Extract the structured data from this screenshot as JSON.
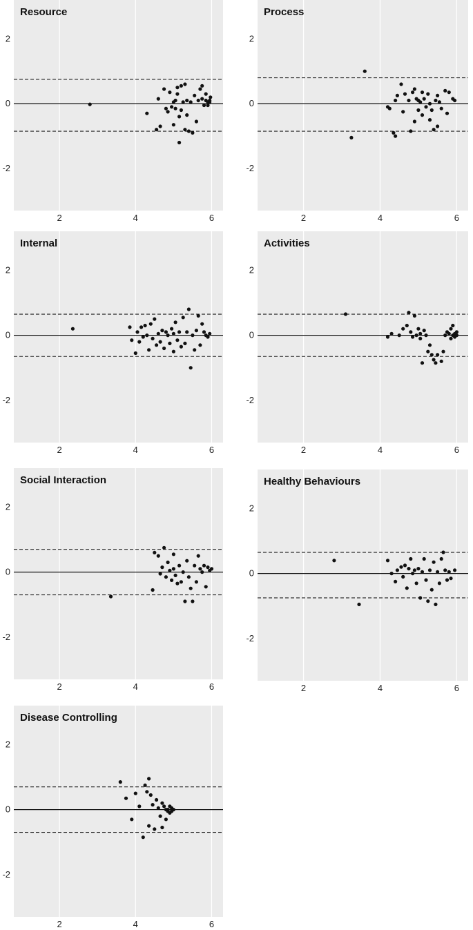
{
  "chart_data": [
    {
      "type": "scatter",
      "title": "Resource",
      "xlim": [
        0.8,
        6.3
      ],
      "ylim": [
        -3.3,
        3.2
      ],
      "xticks": [
        2,
        4,
        6
      ],
      "yticks": [
        2,
        0,
        -2
      ],
      "mean_line": 0,
      "loa_upper": 0.75,
      "loa_lower": -0.85,
      "points": [
        [
          2.8,
          -0.02
        ],
        [
          4.3,
          -0.3
        ],
        [
          4.55,
          -0.8
        ],
        [
          4.6,
          0.15
        ],
        [
          4.65,
          -0.7
        ],
        [
          4.75,
          0.45
        ],
        [
          4.8,
          -0.15
        ],
        [
          4.85,
          -0.25
        ],
        [
          4.9,
          0.35
        ],
        [
          4.95,
          -0.1
        ],
        [
          5.0,
          0.05
        ],
        [
          5.0,
          -0.65
        ],
        [
          5.05,
          0.1
        ],
        [
          5.05,
          -0.15
        ],
        [
          5.1,
          0.3
        ],
        [
          5.1,
          0.5
        ],
        [
          5.15,
          -0.4
        ],
        [
          5.15,
          -1.2
        ],
        [
          5.2,
          0.55
        ],
        [
          5.2,
          -0.2
        ],
        [
          5.25,
          0.05
        ],
        [
          5.3,
          0.6
        ],
        [
          5.3,
          -0.8
        ],
        [
          5.35,
          0.1
        ],
        [
          5.35,
          -0.35
        ],
        [
          5.4,
          -0.85
        ],
        [
          5.45,
          0.05
        ],
        [
          5.5,
          -0.9
        ],
        [
          5.55,
          0.25
        ],
        [
          5.6,
          -0.55
        ],
        [
          5.65,
          0.1
        ],
        [
          5.7,
          0.45
        ],
        [
          5.75,
          0.55
        ],
        [
          5.75,
          0.15
        ],
        [
          5.8,
          -0.05
        ],
        [
          5.85,
          0.1
        ],
        [
          5.85,
          0.3
        ],
        [
          5.9,
          0.05
        ],
        [
          5.9,
          -0.05
        ],
        [
          5.95,
          0.1
        ],
        [
          5.95,
          0.05
        ],
        [
          5.97,
          0.2
        ]
      ]
    },
    {
      "type": "scatter",
      "title": "Process",
      "xlim": [
        0.8,
        6.3
      ],
      "ylim": [
        -3.3,
        3.2
      ],
      "xticks": [
        2,
        4,
        6
      ],
      "yticks": [
        2,
        0,
        -2
      ],
      "mean_line": 0,
      "loa_upper": 0.8,
      "loa_lower": -0.85,
      "points": [
        [
          3.25,
          -1.05
        ],
        [
          3.6,
          1.0
        ],
        [
          4.2,
          -0.1
        ],
        [
          4.25,
          -0.15
        ],
        [
          4.35,
          -0.9
        ],
        [
          4.4,
          -1.0
        ],
        [
          4.4,
          0.1
        ],
        [
          4.45,
          0.25
        ],
        [
          4.55,
          0.6
        ],
        [
          4.6,
          -0.25
        ],
        [
          4.65,
          0.3
        ],
        [
          4.75,
          0.1
        ],
        [
          4.8,
          -0.85
        ],
        [
          4.85,
          0.35
        ],
        [
          4.9,
          -0.55
        ],
        [
          4.9,
          0.45
        ],
        [
          4.95,
          0.15
        ],
        [
          5.0,
          0.1
        ],
        [
          5.0,
          -0.2
        ],
        [
          5.05,
          0.05
        ],
        [
          5.1,
          0.35
        ],
        [
          5.1,
          -0.35
        ],
        [
          5.15,
          0.15
        ],
        [
          5.2,
          -0.1
        ],
        [
          5.25,
          0.3
        ],
        [
          5.3,
          -0.5
        ],
        [
          5.3,
          0.0
        ],
        [
          5.35,
          -0.2
        ],
        [
          5.4,
          -0.8
        ],
        [
          5.45,
          0.1
        ],
        [
          5.5,
          -0.7
        ],
        [
          5.5,
          0.25
        ],
        [
          5.55,
          0.05
        ],
        [
          5.6,
          -0.15
        ],
        [
          5.7,
          0.4
        ],
        [
          5.75,
          -0.3
        ],
        [
          5.8,
          0.35
        ],
        [
          5.9,
          0.15
        ],
        [
          5.95,
          0.1
        ]
      ]
    },
    {
      "type": "scatter",
      "title": "Internal",
      "xlim": [
        0.8,
        6.3
      ],
      "ylim": [
        -3.3,
        3.2
      ],
      "xticks": [
        2,
        4,
        6
      ],
      "yticks": [
        2,
        0,
        -2
      ],
      "mean_line": 0,
      "loa_upper": 0.65,
      "loa_lower": -0.65,
      "points": [
        [
          2.35,
          0.2
        ],
        [
          3.85,
          0.25
        ],
        [
          3.9,
          -0.15
        ],
        [
          4.0,
          -0.55
        ],
        [
          4.05,
          0.1
        ],
        [
          4.1,
          -0.2
        ],
        [
          4.15,
          0.25
        ],
        [
          4.2,
          -0.05
        ],
        [
          4.25,
          0.3
        ],
        [
          4.3,
          0.0
        ],
        [
          4.35,
          -0.45
        ],
        [
          4.4,
          0.35
        ],
        [
          4.45,
          -0.1
        ],
        [
          4.5,
          0.5
        ],
        [
          4.55,
          -0.3
        ],
        [
          4.6,
          0.05
        ],
        [
          4.65,
          -0.2
        ],
        [
          4.7,
          0.15
        ],
        [
          4.75,
          -0.4
        ],
        [
          4.8,
          0.1
        ],
        [
          4.85,
          0.0
        ],
        [
          4.9,
          -0.25
        ],
        [
          4.95,
          0.2
        ],
        [
          5.0,
          0.05
        ],
        [
          5.0,
          -0.5
        ],
        [
          5.05,
          0.4
        ],
        [
          5.1,
          -0.15
        ],
        [
          5.15,
          0.1
        ],
        [
          5.2,
          -0.35
        ],
        [
          5.25,
          0.55
        ],
        [
          5.3,
          -0.25
        ],
        [
          5.35,
          0.1
        ],
        [
          5.4,
          0.8
        ],
        [
          5.45,
          -1.0
        ],
        [
          5.5,
          0.0
        ],
        [
          5.55,
          -0.45
        ],
        [
          5.6,
          0.15
        ],
        [
          5.65,
          0.6
        ],
        [
          5.7,
          -0.3
        ],
        [
          5.75,
          0.35
        ],
        [
          5.8,
          0.1
        ],
        [
          5.85,
          0.0
        ],
        [
          5.9,
          -0.05
        ],
        [
          5.95,
          0.05
        ]
      ]
    },
    {
      "type": "scatter",
      "title": "Activities",
      "xlim": [
        0.8,
        6.3
      ],
      "ylim": [
        -3.3,
        3.2
      ],
      "xticks": [
        2,
        4,
        6
      ],
      "yticks": [
        2,
        0,
        -2
      ],
      "mean_line": 0,
      "loa_upper": 0.65,
      "loa_lower": -0.65,
      "points": [
        [
          3.1,
          0.65
        ],
        [
          4.2,
          -0.05
        ],
        [
          4.3,
          0.05
        ],
        [
          4.5,
          0.0
        ],
        [
          4.6,
          0.2
        ],
        [
          4.7,
          0.3
        ],
        [
          4.75,
          0.7
        ],
        [
          4.8,
          0.1
        ],
        [
          4.85,
          -0.05
        ],
        [
          4.9,
          0.6
        ],
        [
          4.95,
          0.0
        ],
        [
          5.0,
          0.2
        ],
        [
          5.05,
          0.05
        ],
        [
          5.05,
          -0.1
        ],
        [
          5.1,
          -0.85
        ],
        [
          5.15,
          0.15
        ],
        [
          5.2,
          0.0
        ],
        [
          5.25,
          -0.5
        ],
        [
          5.3,
          -0.3
        ],
        [
          5.35,
          -0.6
        ],
        [
          5.4,
          -0.75
        ],
        [
          5.45,
          -0.85
        ],
        [
          5.5,
          -0.6
        ],
        [
          5.6,
          -0.8
        ],
        [
          5.65,
          -0.5
        ],
        [
          5.7,
          0.0
        ],
        [
          5.75,
          0.1
        ],
        [
          5.8,
          0.05
        ],
        [
          5.85,
          -0.1
        ],
        [
          5.85,
          0.2
        ],
        [
          5.9,
          0.0
        ],
        [
          5.9,
          0.3
        ],
        [
          5.95,
          0.05
        ],
        [
          5.95,
          -0.05
        ],
        [
          6.0,
          0.1
        ],
        [
          6.0,
          0.0
        ]
      ]
    },
    {
      "type": "scatter",
      "title": "Social Interaction",
      "xlim": [
        0.8,
        6.3
      ],
      "ylim": [
        -3.3,
        3.2
      ],
      "xticks": [
        2,
        4,
        6
      ],
      "yticks": [
        2,
        0,
        -2
      ],
      "mean_line": 0,
      "loa_upper": 0.7,
      "loa_lower": -0.7,
      "points": [
        [
          3.35,
          -0.75
        ],
        [
          4.45,
          -0.55
        ],
        [
          4.5,
          0.6
        ],
        [
          4.6,
          0.5
        ],
        [
          4.65,
          -0.05
        ],
        [
          4.7,
          0.15
        ],
        [
          4.75,
          0.75
        ],
        [
          4.8,
          -0.15
        ],
        [
          4.85,
          0.3
        ],
        [
          4.9,
          0.05
        ],
        [
          4.95,
          -0.25
        ],
        [
          5.0,
          0.1
        ],
        [
          5.0,
          0.55
        ],
        [
          5.05,
          -0.1
        ],
        [
          5.1,
          -0.35
        ],
        [
          5.15,
          0.2
        ],
        [
          5.2,
          -0.3
        ],
        [
          5.25,
          0.0
        ],
        [
          5.3,
          -0.9
        ],
        [
          5.35,
          0.35
        ],
        [
          5.4,
          -0.15
        ],
        [
          5.45,
          -0.5
        ],
        [
          5.5,
          -0.9
        ],
        [
          5.55,
          0.2
        ],
        [
          5.6,
          -0.3
        ],
        [
          5.65,
          0.5
        ],
        [
          5.7,
          0.1
        ],
        [
          5.75,
          0.0
        ],
        [
          5.8,
          0.2
        ],
        [
          5.85,
          -0.45
        ],
        [
          5.9,
          0.15
        ],
        [
          5.95,
          0.05
        ],
        [
          6.0,
          0.1
        ]
      ]
    },
    {
      "type": "scatter",
      "title": "Healthy Behaviours",
      "xlim": [
        0.8,
        6.3
      ],
      "ylim": [
        -3.3,
        3.2
      ],
      "xticks": [
        2,
        4,
        6
      ],
      "yticks": [
        2,
        0,
        -2
      ],
      "mean_line": 0,
      "loa_upper": 0.65,
      "loa_lower": -0.75,
      "points": [
        [
          2.8,
          0.4
        ],
        [
          3.45,
          -0.95
        ],
        [
          4.2,
          0.4
        ],
        [
          4.3,
          0.0
        ],
        [
          4.4,
          -0.25
        ],
        [
          4.45,
          0.1
        ],
        [
          4.55,
          0.2
        ],
        [
          4.6,
          -0.1
        ],
        [
          4.65,
          0.25
        ],
        [
          4.7,
          -0.45
        ],
        [
          4.75,
          0.15
        ],
        [
          4.8,
          0.45
        ],
        [
          4.85,
          0.0
        ],
        [
          4.9,
          0.1
        ],
        [
          4.95,
          -0.3
        ],
        [
          5.0,
          0.15
        ],
        [
          5.05,
          -0.75
        ],
        [
          5.1,
          0.05
        ],
        [
          5.15,
          0.45
        ],
        [
          5.2,
          -0.2
        ],
        [
          5.25,
          -0.85
        ],
        [
          5.3,
          0.1
        ],
        [
          5.35,
          -0.5
        ],
        [
          5.4,
          0.35
        ],
        [
          5.45,
          -0.95
        ],
        [
          5.5,
          0.05
        ],
        [
          5.55,
          -0.3
        ],
        [
          5.6,
          0.45
        ],
        [
          5.65,
          0.65
        ],
        [
          5.7,
          0.1
        ],
        [
          5.75,
          -0.2
        ],
        [
          5.8,
          0.05
        ],
        [
          5.85,
          -0.15
        ],
        [
          5.95,
          0.1
        ]
      ]
    },
    {
      "type": "scatter",
      "title": "Disease Controlling",
      "xlim": [
        0.8,
        6.3
      ],
      "ylim": [
        -3.3,
        3.2
      ],
      "xticks": [
        2,
        4,
        6
      ],
      "yticks": [
        2,
        0,
        -2
      ],
      "mean_line": 0,
      "loa_upper": 0.7,
      "loa_lower": -0.7,
      "points": [
        [
          3.6,
          0.85
        ],
        [
          3.75,
          0.35
        ],
        [
          3.9,
          -0.3
        ],
        [
          4.0,
          0.5
        ],
        [
          4.1,
          0.1
        ],
        [
          4.2,
          -0.85
        ],
        [
          4.25,
          0.75
        ],
        [
          4.3,
          0.55
        ],
        [
          4.35,
          0.95
        ],
        [
          4.35,
          -0.5
        ],
        [
          4.4,
          0.45
        ],
        [
          4.45,
          0.15
        ],
        [
          4.5,
          -0.6
        ],
        [
          4.55,
          0.3
        ],
        [
          4.6,
          0.05
        ],
        [
          4.65,
          -0.2
        ],
        [
          4.7,
          0.2
        ],
        [
          4.7,
          -0.55
        ],
        [
          4.75,
          0.1
        ],
        [
          4.8,
          -0.3
        ],
        [
          4.85,
          0.0
        ],
        [
          4.9,
          -0.1
        ],
        [
          4.95,
          0.05
        ],
        [
          5.0,
          0.0
        ],
        [
          4.85,
          -0.05
        ],
        [
          4.9,
          0.1
        ],
        [
          4.95,
          -0.05
        ],
        [
          4.8,
          0.0
        ]
      ]
    }
  ]
}
